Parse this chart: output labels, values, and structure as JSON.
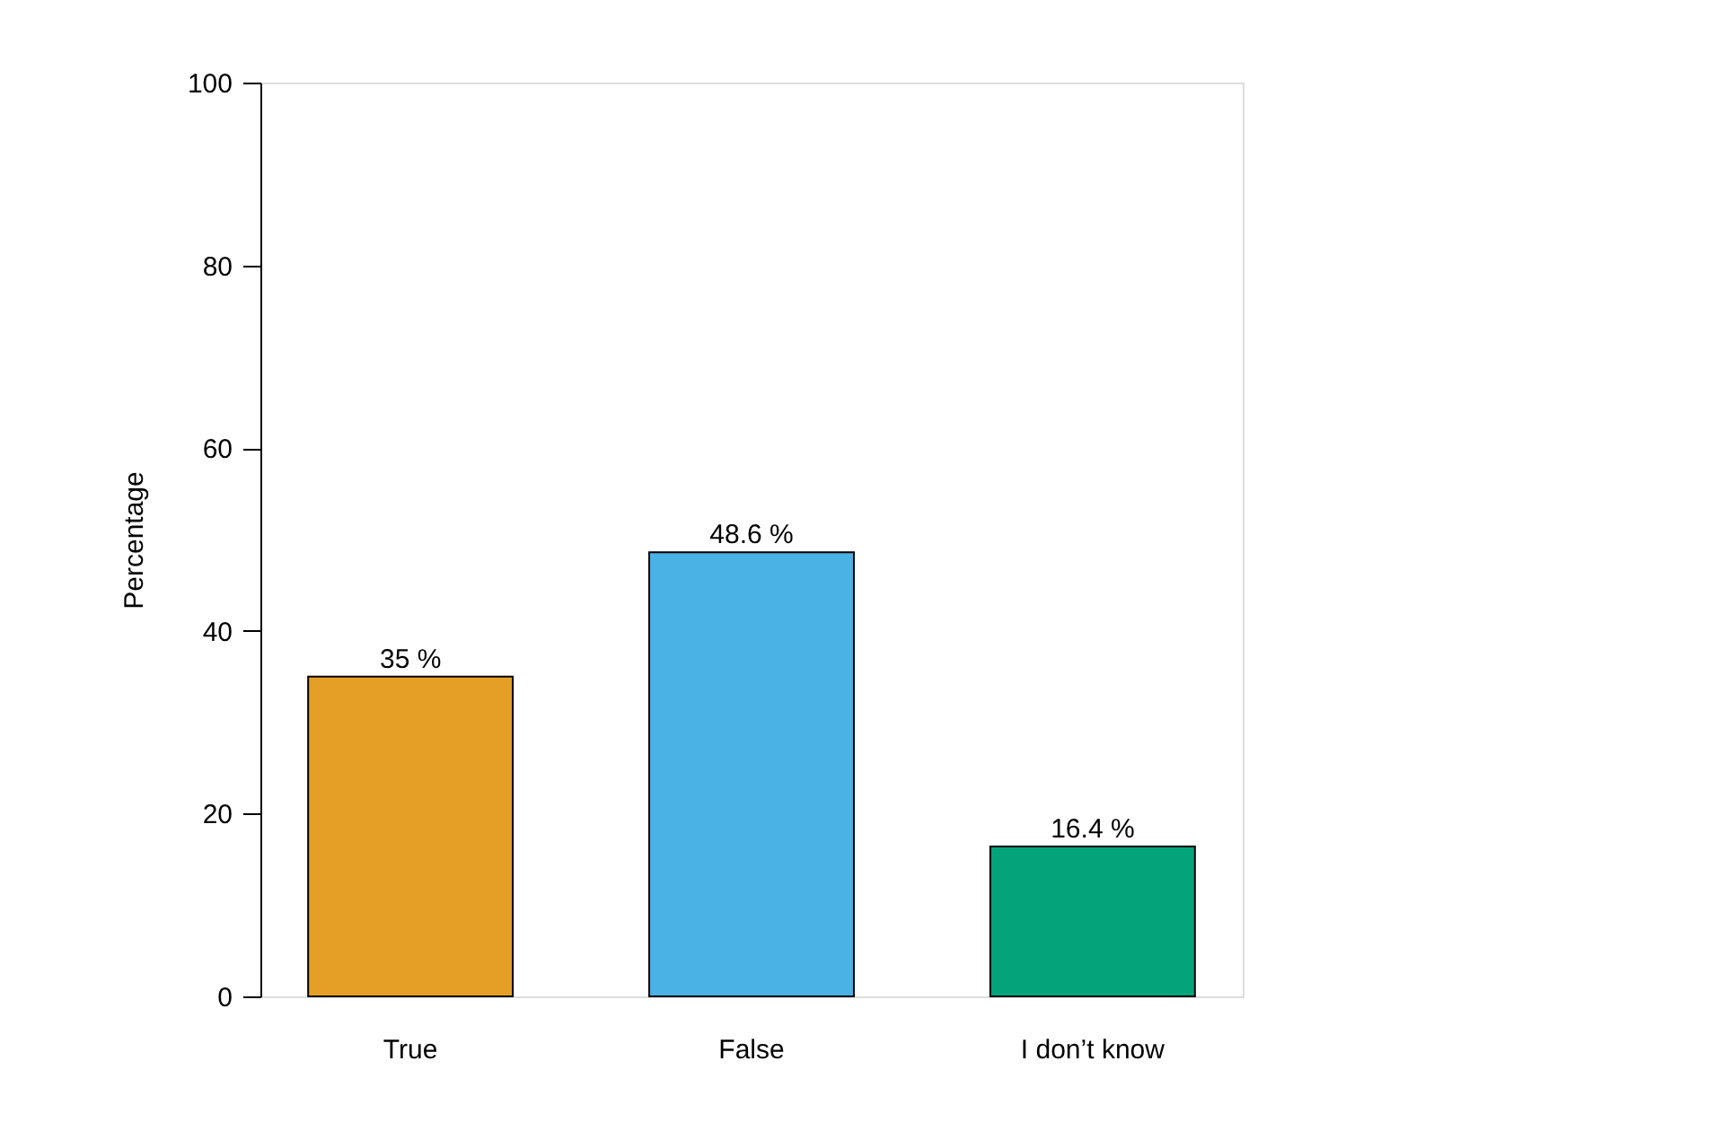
{
  "chart_data": {
    "type": "bar",
    "ylabel": "Percentage",
    "categories": [
      "True",
      "False",
      "I don’t know"
    ],
    "values": [
      35,
      48.6,
      16.4
    ],
    "colors": [
      "#e69f26",
      "#4ab2e5",
      "#04a47a"
    ],
    "value_labels": [
      "35 %",
      "48.6 %",
      "16.4 %"
    ],
    "ylim": [
      0,
      100
    ],
    "yticks": [
      0,
      20,
      40,
      60,
      80,
      100
    ],
    "grid": false,
    "legend": false
  }
}
